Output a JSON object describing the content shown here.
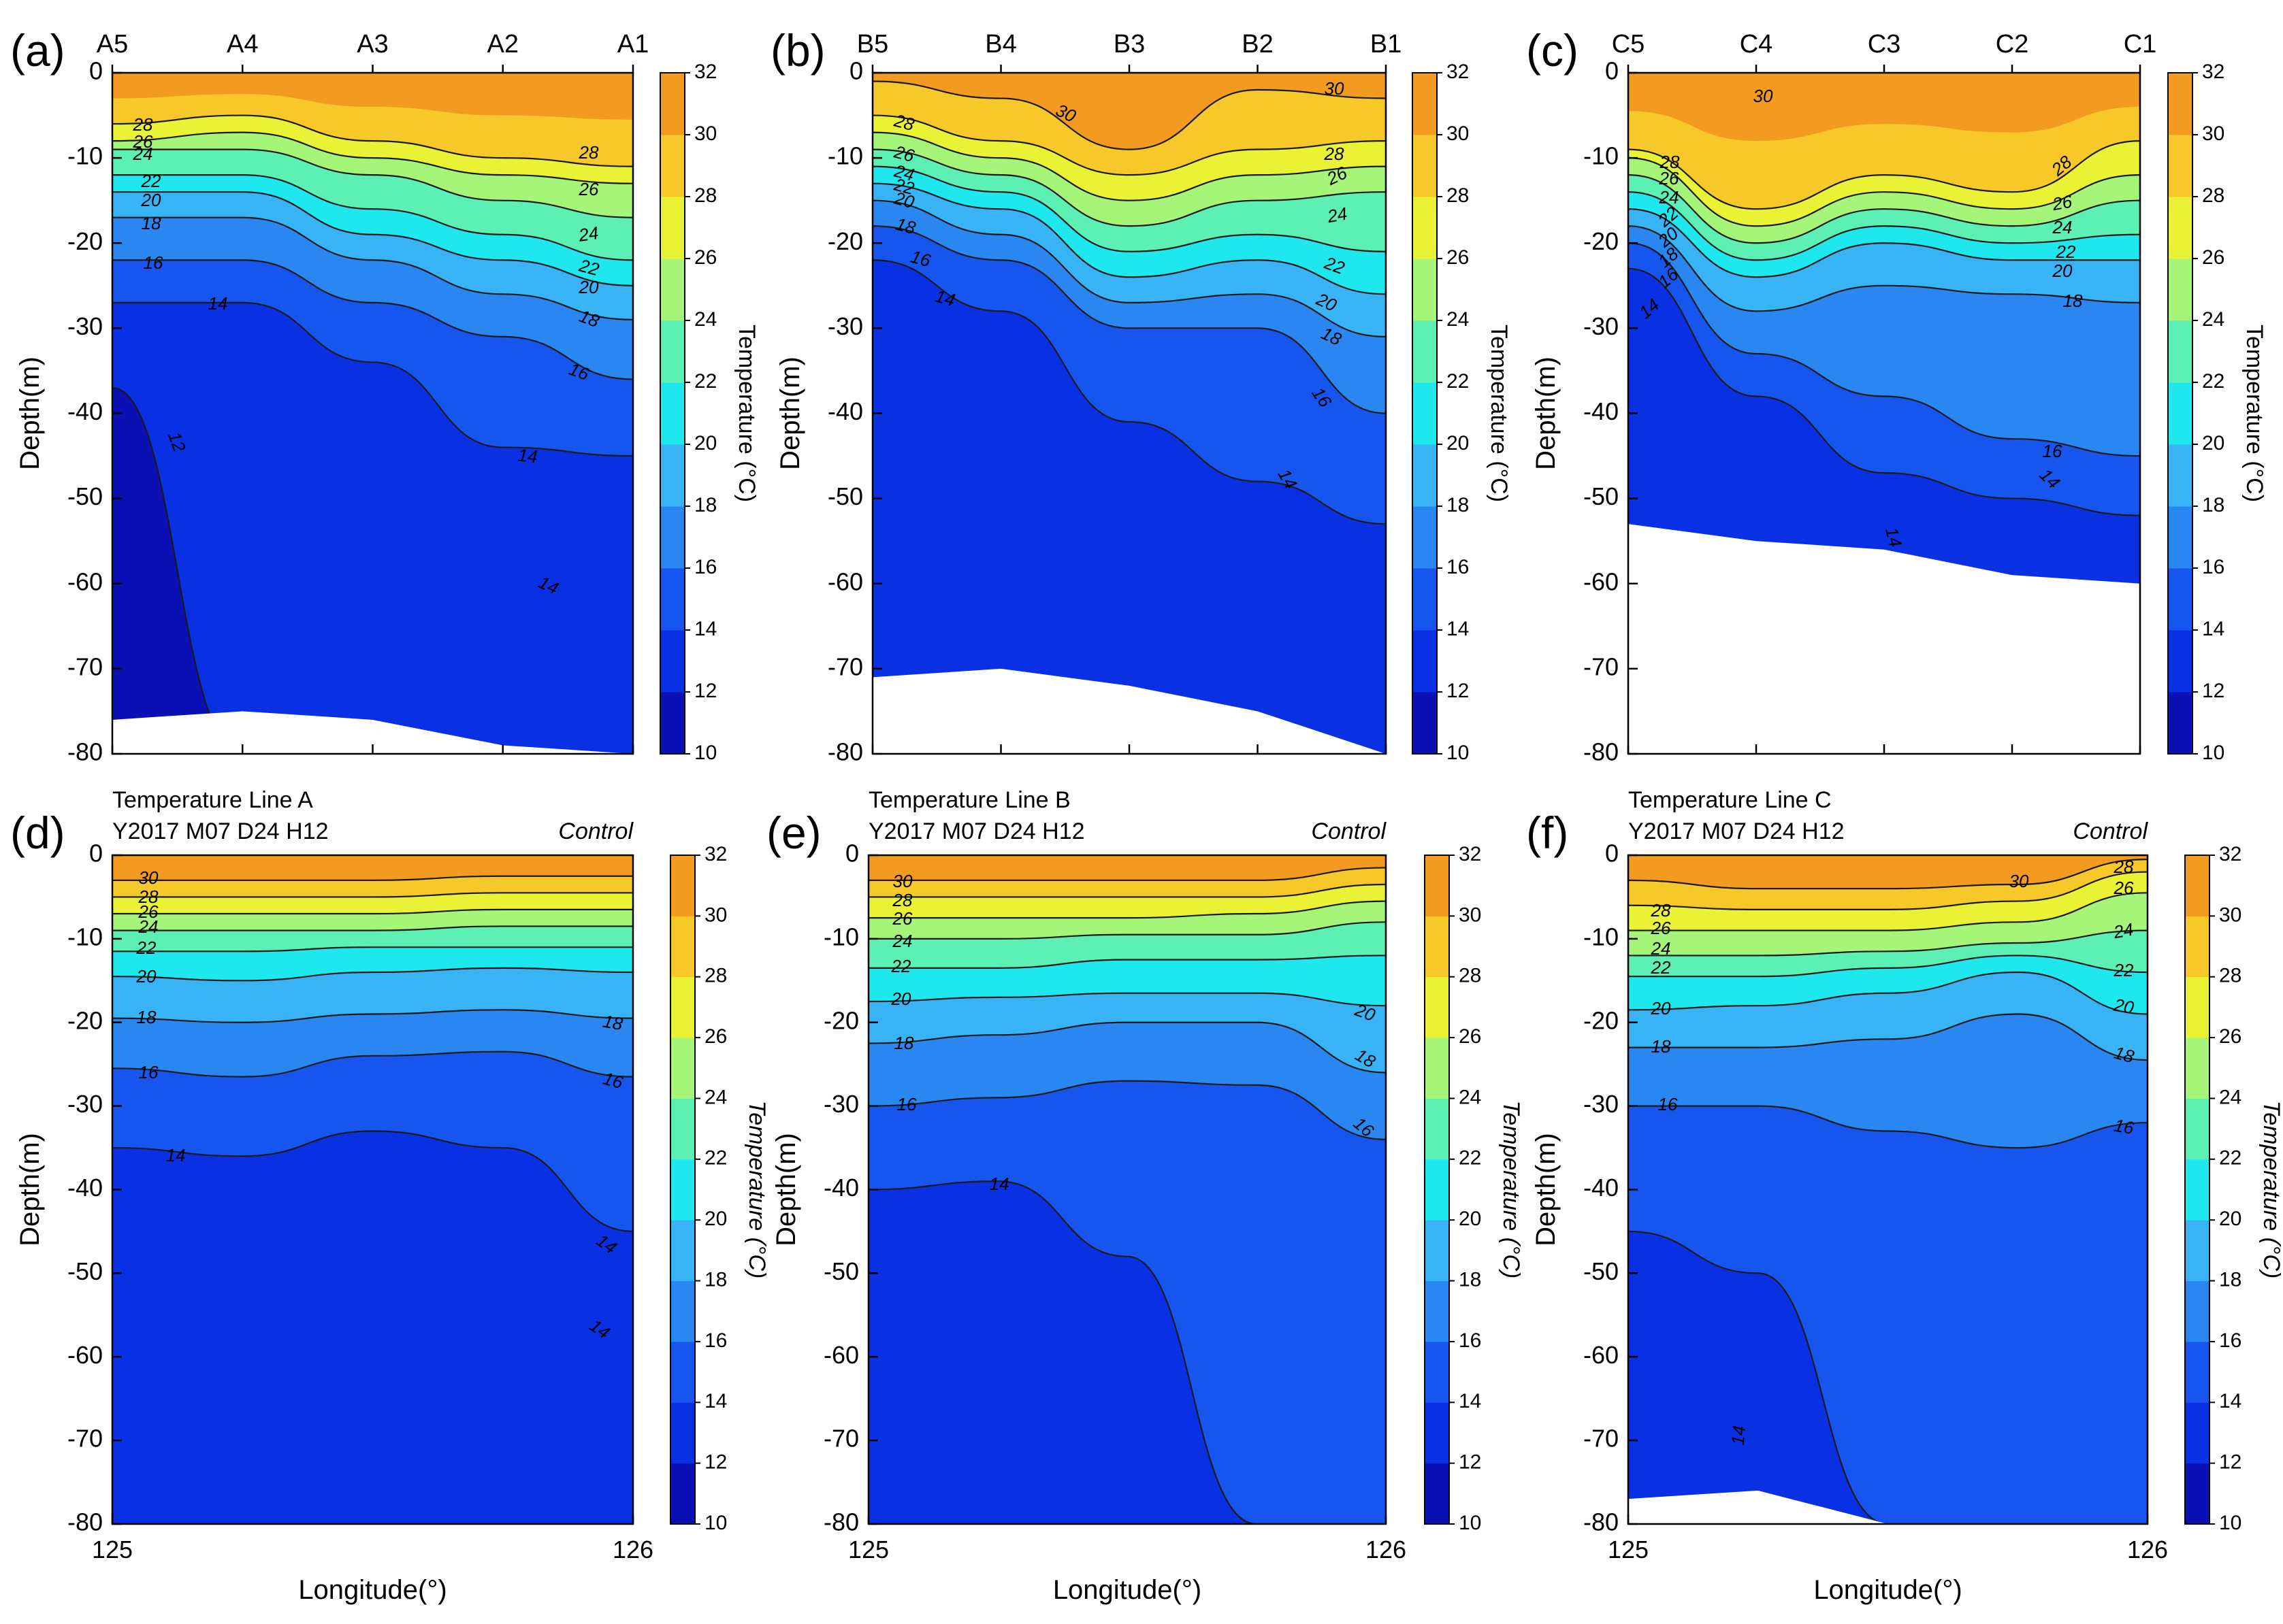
{
  "chart_data": [
    {
      "type": "heatmap",
      "panel_label": "(a)",
      "station_labels": [
        "A5",
        "A4",
        "A3",
        "A2",
        "A1"
      ],
      "ylabel": "Depth(m)",
      "ylim": [
        -80,
        0
      ],
      "yticks": [
        0,
        -10,
        -20,
        -30,
        -40,
        -50,
        -60,
        -70,
        -80
      ],
      "colorbar": {
        "label": "Temperature (°C)",
        "range": [
          10,
          32
        ],
        "ticks": [
          10,
          12,
          14,
          16,
          18,
          20,
          22,
          24,
          26,
          28,
          30,
          32
        ]
      },
      "contour_labels": [
        "28",
        "26",
        "24",
        "22",
        "20",
        "18",
        "16",
        "14",
        "12",
        "28",
        "26",
        "24",
        "22",
        "20",
        "18",
        "16",
        "14",
        "14"
      ],
      "isotherm_depths": [
        {
          "t": 28,
          "d": [
            -6,
            -5,
            -8,
            -10,
            -11
          ]
        },
        {
          "t": 26,
          "d": [
            -8,
            -7,
            -10,
            -12,
            -13
          ]
        },
        {
          "t": 24,
          "d": [
            -9,
            -9,
            -12,
            -15,
            -17
          ]
        },
        {
          "t": 22,
          "d": [
            -12,
            -12,
            -16,
            -19,
            -22
          ]
        },
        {
          "t": 20,
          "d": [
            -14,
            -14,
            -19,
            -22,
            -25
          ]
        },
        {
          "t": 18,
          "d": [
            -17,
            -17,
            -22,
            -26,
            -29
          ]
        },
        {
          "t": 16,
          "d": [
            -22,
            -22,
            -27,
            -31,
            -36
          ]
        },
        {
          "t": 14,
          "d": [
            -27,
            -27,
            -34,
            -44,
            -45
          ]
        },
        {
          "t": 12,
          "d": [
            -37,
            -80,
            -80,
            -80,
            -80
          ]
        }
      ],
      "bottom_depth": [
        -76,
        -75,
        -76,
        -79,
        -80
      ]
    },
    {
      "type": "heatmap",
      "panel_label": "(b)",
      "station_labels": [
        "B5",
        "B4",
        "B3",
        "B2",
        "B1"
      ],
      "ylabel": "Depth(m)",
      "ylim": [
        -80,
        0
      ],
      "yticks": [
        0,
        -10,
        -20,
        -30,
        -40,
        -50,
        -60,
        -70,
        -80
      ],
      "colorbar": {
        "label": "Temperature (°C)",
        "range": [
          10,
          32
        ],
        "ticks": [
          10,
          12,
          14,
          16,
          18,
          20,
          22,
          24,
          26,
          28,
          30,
          32
        ]
      },
      "contour_labels": [
        "28",
        "26",
        "24",
        "22",
        "20",
        "18",
        "16",
        "14",
        "30",
        "30",
        "28",
        "26",
        "24",
        "22",
        "20",
        "18",
        "16",
        "14"
      ],
      "isotherm_depths": [
        {
          "t": 30,
          "d": [
            -1,
            -3,
            -9,
            -2,
            -3
          ]
        },
        {
          "t": 28,
          "d": [
            -5,
            -8,
            -12,
            -9,
            -8
          ]
        },
        {
          "t": 26,
          "d": [
            -7,
            -10,
            -15,
            -12,
            -11
          ]
        },
        {
          "t": 24,
          "d": [
            -9,
            -12,
            -18,
            -15,
            -14
          ]
        },
        {
          "t": 22,
          "d": [
            -11,
            -14,
            -21,
            -19,
            -21
          ]
        },
        {
          "t": 20,
          "d": [
            -13,
            -16,
            -24,
            -22,
            -26
          ]
        },
        {
          "t": 18,
          "d": [
            -15,
            -19,
            -27,
            -26,
            -31
          ]
        },
        {
          "t": 16,
          "d": [
            -18,
            -22,
            -30,
            -30,
            -40
          ]
        },
        {
          "t": 14,
          "d": [
            -22,
            -28,
            -41,
            -48,
            -53
          ]
        }
      ],
      "bottom_depth": [
        -71,
        -70,
        -72,
        -75,
        -80
      ]
    },
    {
      "type": "heatmap",
      "panel_label": "(c)",
      "station_labels": [
        "C5",
        "C4",
        "C3",
        "C2",
        "C1"
      ],
      "ylabel": "Depth(m)",
      "ylim": [
        -80,
        0
      ],
      "yticks": [
        0,
        -10,
        -20,
        -30,
        -40,
        -50,
        -60,
        -70,
        -80
      ],
      "colorbar": {
        "label": "Temperature (°C)",
        "range": [
          10,
          32
        ],
        "ticks": [
          10,
          12,
          14,
          16,
          18,
          20,
          22,
          24,
          26,
          28,
          30,
          32
        ]
      },
      "contour_labels": [
        "30",
        "28",
        "26",
        "24",
        "22",
        "20",
        "18",
        "16",
        "14",
        "28",
        "26",
        "24",
        "22",
        "20",
        "18",
        "16",
        "14",
        "14"
      ],
      "isotherm_depths": [
        {
          "t": 28,
          "d": [
            -9,
            -16,
            -12,
            -14,
            -8
          ]
        },
        {
          "t": 26,
          "d": [
            -10,
            -18,
            -14,
            -16,
            -12
          ]
        },
        {
          "t": 24,
          "d": [
            -12,
            -20,
            -16,
            -18,
            -15
          ]
        },
        {
          "t": 22,
          "d": [
            -14,
            -22,
            -18,
            -20,
            -19
          ]
        },
        {
          "t": 20,
          "d": [
            -16,
            -24,
            -20,
            -22,
            -22
          ]
        },
        {
          "t": 18,
          "d": [
            -18,
            -28,
            -25,
            -26,
            -27
          ]
        },
        {
          "t": 16,
          "d": [
            -20,
            -33,
            -38,
            -43,
            -45
          ]
        },
        {
          "t": 14,
          "d": [
            -23,
            -38,
            -47,
            -50,
            -52
          ]
        }
      ],
      "bottom_depth": [
        -53,
        -55,
        -56,
        -59,
        -60
      ]
    },
    {
      "type": "heatmap",
      "panel_label": "(d)",
      "title_lines": [
        "Temperature Line A",
        "Y2017 M07 D24 H12"
      ],
      "title_right": "Control",
      "xlabel": "Longitude(°)",
      "xticks": [
        "125",
        "126"
      ],
      "xlim": [
        125,
        126
      ],
      "ylabel": "Depth(m)",
      "ylim": [
        -80,
        0
      ],
      "yticks": [
        0,
        -10,
        -20,
        -30,
        -40,
        -50,
        -60,
        -70,
        -80
      ],
      "colorbar": {
        "label": "Temperature (°C)",
        "range": [
          10,
          32
        ],
        "ticks": [
          10,
          12,
          14,
          16,
          18,
          20,
          22,
          24,
          26,
          28,
          30,
          32
        ]
      },
      "contour_labels": [
        "30",
        "28",
        "26",
        "24",
        "22",
        "20",
        "18",
        "16",
        "14",
        "18",
        "16",
        "14",
        "14"
      ],
      "isotherm_depths": [
        {
          "t": 30,
          "d": [
            -3,
            -3,
            -3,
            -2.5,
            -2.5
          ]
        },
        {
          "t": 28,
          "d": [
            -5,
            -5,
            -5,
            -4.5,
            -4.5
          ]
        },
        {
          "t": 26,
          "d": [
            -7,
            -7,
            -7,
            -6.5,
            -6.5
          ]
        },
        {
          "t": 24,
          "d": [
            -9,
            -9,
            -9,
            -8.5,
            -8.5
          ]
        },
        {
          "t": 22,
          "d": [
            -11.5,
            -11.5,
            -11,
            -11,
            -11
          ]
        },
        {
          "t": 20,
          "d": [
            -14.5,
            -15,
            -14,
            -13.5,
            -14
          ]
        },
        {
          "t": 18,
          "d": [
            -19.5,
            -20,
            -19,
            -18.5,
            -19.5
          ]
        },
        {
          "t": 16,
          "d": [
            -25.5,
            -26.5,
            -24,
            -23.5,
            -26.5
          ]
        },
        {
          "t": 14,
          "d": [
            -35,
            -36,
            -33,
            -35,
            -45
          ]
        }
      ],
      "bottom_depth": [
        -80,
        -80,
        -80,
        -80,
        -80
      ]
    },
    {
      "type": "heatmap",
      "panel_label": "(e)",
      "title_lines": [
        "Temperature Line B",
        "Y2017 M07 D24 H12"
      ],
      "title_right": "Control",
      "xlabel": "Longitude(°)",
      "xticks": [
        "125",
        "126"
      ],
      "xlim": [
        125,
        126
      ],
      "ylabel": "Depth(m)",
      "ylim": [
        -80,
        0
      ],
      "yticks": [
        0,
        -10,
        -20,
        -30,
        -40,
        -50,
        -60,
        -70,
        -80
      ],
      "colorbar": {
        "label": "Temperature (°C)",
        "range": [
          10,
          32
        ],
        "ticks": [
          10,
          12,
          14,
          16,
          18,
          20,
          22,
          24,
          26,
          28,
          30,
          32
        ]
      },
      "contour_labels": [
        "30",
        "28",
        "26",
        "24",
        "22",
        "20",
        "18",
        "16",
        "14",
        "20",
        "18",
        "16"
      ],
      "isotherm_depths": [
        {
          "t": 30,
          "d": [
            -3,
            -3,
            -3,
            -3,
            -1.5
          ]
        },
        {
          "t": 28,
          "d": [
            -5,
            -5,
            -5,
            -5,
            -3.5
          ]
        },
        {
          "t": 26,
          "d": [
            -7.5,
            -7.5,
            -7.5,
            -7,
            -5.5
          ]
        },
        {
          "t": 24,
          "d": [
            -10,
            -10,
            -9.5,
            -9.5,
            -8
          ]
        },
        {
          "t": 22,
          "d": [
            -13.5,
            -13.5,
            -12.5,
            -12.5,
            -12
          ]
        },
        {
          "t": 20,
          "d": [
            -17.5,
            -17,
            -16.5,
            -16.5,
            -18
          ]
        },
        {
          "t": 18,
          "d": [
            -22.5,
            -21.5,
            -20,
            -20,
            -26
          ]
        },
        {
          "t": 16,
          "d": [
            -30,
            -29,
            -27,
            -27.5,
            -34
          ]
        },
        {
          "t": 14,
          "d": [
            -40,
            -39,
            -48,
            -80,
            -80
          ]
        }
      ],
      "bottom_depth": [
        -80,
        -80,
        -80,
        -80,
        -80
      ]
    },
    {
      "type": "heatmap",
      "panel_label": "(f)",
      "title_lines": [
        "Temperature Line C",
        "Y2017 M07 D24 H12"
      ],
      "title_right": "Control",
      "xlabel": "Longitude(°)",
      "xticks": [
        "125",
        "126"
      ],
      "xlim": [
        125,
        126
      ],
      "ylabel": "Depth(m)",
      "ylim": [
        -80,
        0
      ],
      "yticks": [
        0,
        -10,
        -20,
        -30,
        -40,
        -50,
        -60,
        -70,
        -80
      ],
      "colorbar": {
        "label": "Temperature (°C)",
        "range": [
          10,
          32
        ],
        "ticks": [
          10,
          12,
          14,
          16,
          18,
          20,
          22,
          24,
          26,
          28,
          30,
          32
        ]
      },
      "contour_labels": [
        "30",
        "28",
        "26",
        "24",
        "22",
        "20",
        "18",
        "16",
        "14",
        "28",
        "26",
        "24",
        "22",
        "20",
        "18",
        "16"
      ],
      "isotherm_depths": [
        {
          "t": 30,
          "d": [
            -3,
            -4,
            -4,
            -3.5,
            -0.5
          ]
        },
        {
          "t": 28,
          "d": [
            -6,
            -6.5,
            -6.5,
            -5.5,
            -2
          ]
        },
        {
          "t": 26,
          "d": [
            -9,
            -9,
            -9,
            -8,
            -4.5
          ]
        },
        {
          "t": 24,
          "d": [
            -12,
            -12,
            -11.5,
            -10.5,
            -9
          ]
        },
        {
          "t": 22,
          "d": [
            -14.5,
            -14.5,
            -13.5,
            -12,
            -14
          ]
        },
        {
          "t": 20,
          "d": [
            -18.5,
            -18,
            -16.5,
            -14,
            -19
          ]
        },
        {
          "t": 18,
          "d": [
            -23,
            -23,
            -22,
            -19,
            -24.5
          ]
        },
        {
          "t": 16,
          "d": [
            -30,
            -30,
            -33,
            -35,
            -32
          ]
        },
        {
          "t": 14,
          "d": [
            -45,
            -50,
            -80,
            -80,
            -80
          ]
        }
      ],
      "bottom_depth": [
        -77,
        -76,
        -80,
        -80,
        -80
      ]
    }
  ]
}
